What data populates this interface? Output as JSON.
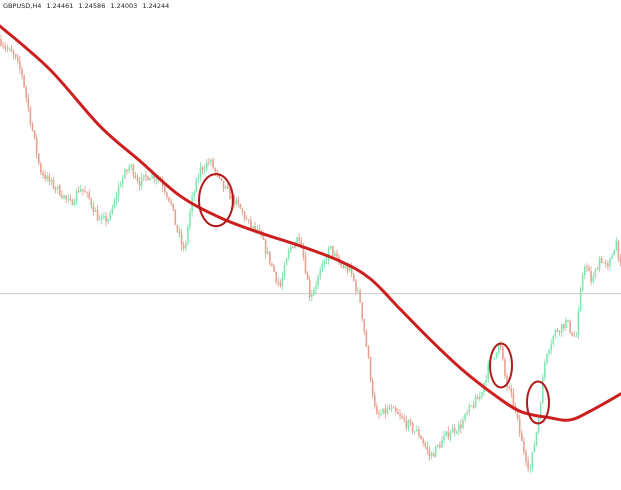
{
  "header": {
    "symbol": "GBPUSD,H4",
    "open": "1.24461",
    "high": "1.24586",
    "low": "1.24003",
    "close": "1.24244"
  },
  "colors": {
    "bull": "#7ee8b0",
    "bear": "#e8a08f",
    "wick_bull": "#6fd9a0",
    "wick_bear": "#d98f7e",
    "moving_average": "#cc1f1f",
    "circle": "#b01a1a",
    "horizontal_line": "#bdbdbd"
  },
  "chart_data": {
    "type": "candlestick",
    "symbol": "GBPUSD",
    "timeframe": "H4",
    "ylim": [
      1.1974,
      1.31
    ],
    "horizontal_line_price": 1.2425,
    "price_path": [
      [
        0,
        1.301
      ],
      [
        6,
        1.299
      ],
      [
        14,
        1.297
      ],
      [
        22,
        1.293
      ],
      [
        30,
        1.283
      ],
      [
        40,
        1.271
      ],
      [
        50,
        1.268
      ],
      [
        60,
        1.266
      ],
      [
        70,
        1.263
      ],
      [
        80,
        1.267
      ],
      [
        90,
        1.264
      ],
      [
        100,
        1.259
      ],
      [
        110,
        1.26
      ],
      [
        120,
        1.268
      ],
      [
        130,
        1.272
      ],
      [
        140,
        1.268
      ],
      [
        150,
        1.27
      ],
      [
        160,
        1.269
      ],
      [
        170,
        1.264
      ],
      [
        176,
        1.258
      ],
      [
        184,
        1.252
      ],
      [
        192,
        1.264
      ],
      [
        200,
        1.271
      ],
      [
        210,
        1.273
      ],
      [
        220,
        1.268
      ],
      [
        230,
        1.265
      ],
      [
        240,
        1.262
      ],
      [
        250,
        1.258
      ],
      [
        260,
        1.256
      ],
      [
        270,
        1.25
      ],
      [
        280,
        1.244
      ],
      [
        290,
        1.253
      ],
      [
        300,
        1.256
      ],
      [
        310,
        1.242
      ],
      [
        320,
        1.247
      ],
      [
        330,
        1.253
      ],
      [
        340,
        1.249
      ],
      [
        350,
        1.248
      ],
      [
        360,
        1.241
      ],
      [
        368,
        1.228
      ],
      [
        376,
        1.214
      ],
      [
        390,
        1.216
      ],
      [
        400,
        1.214
      ],
      [
        410,
        1.212
      ],
      [
        420,
        1.21
      ],
      [
        430,
        1.205
      ],
      [
        440,
        1.208
      ],
      [
        450,
        1.211
      ],
      [
        460,
        1.212
      ],
      [
        470,
        1.216
      ],
      [
        480,
        1.219
      ],
      [
        490,
        1.227
      ],
      [
        500,
        1.231
      ],
      [
        506,
        1.222
      ],
      [
        514,
        1.217
      ],
      [
        522,
        1.208
      ],
      [
        530,
        1.202
      ],
      [
        538,
        1.213
      ],
      [
        546,
        1.229
      ],
      [
        556,
        1.234
      ],
      [
        566,
        1.236
      ],
      [
        576,
        1.232
      ],
      [
        584,
        1.25
      ],
      [
        592,
        1.245
      ],
      [
        600,
        1.251
      ],
      [
        608,
        1.248
      ],
      [
        616,
        1.255
      ],
      [
        621,
        1.248
      ]
    ],
    "moving_average": [
      [
        0,
        1.304
      ],
      [
        50,
        1.294
      ],
      [
        100,
        1.281
      ],
      [
        140,
        1.273
      ],
      [
        180,
        1.265
      ],
      [
        220,
        1.26
      ],
      [
        260,
        1.2565
      ],
      [
        300,
        1.2535
      ],
      [
        340,
        1.25
      ],
      [
        370,
        1.246
      ],
      [
        400,
        1.239
      ],
      [
        430,
        1.232
      ],
      [
        460,
        1.2255
      ],
      [
        490,
        1.22
      ],
      [
        520,
        1.2155
      ],
      [
        550,
        1.214
      ],
      [
        570,
        1.2135
      ],
      [
        590,
        1.2155
      ],
      [
        621,
        1.2195
      ]
    ],
    "highlight_circles": [
      {
        "x": 216,
        "price": 1.264
      },
      {
        "x": 501,
        "price": 1.226
      },
      {
        "x": 538,
        "price": 1.2175
      }
    ]
  }
}
